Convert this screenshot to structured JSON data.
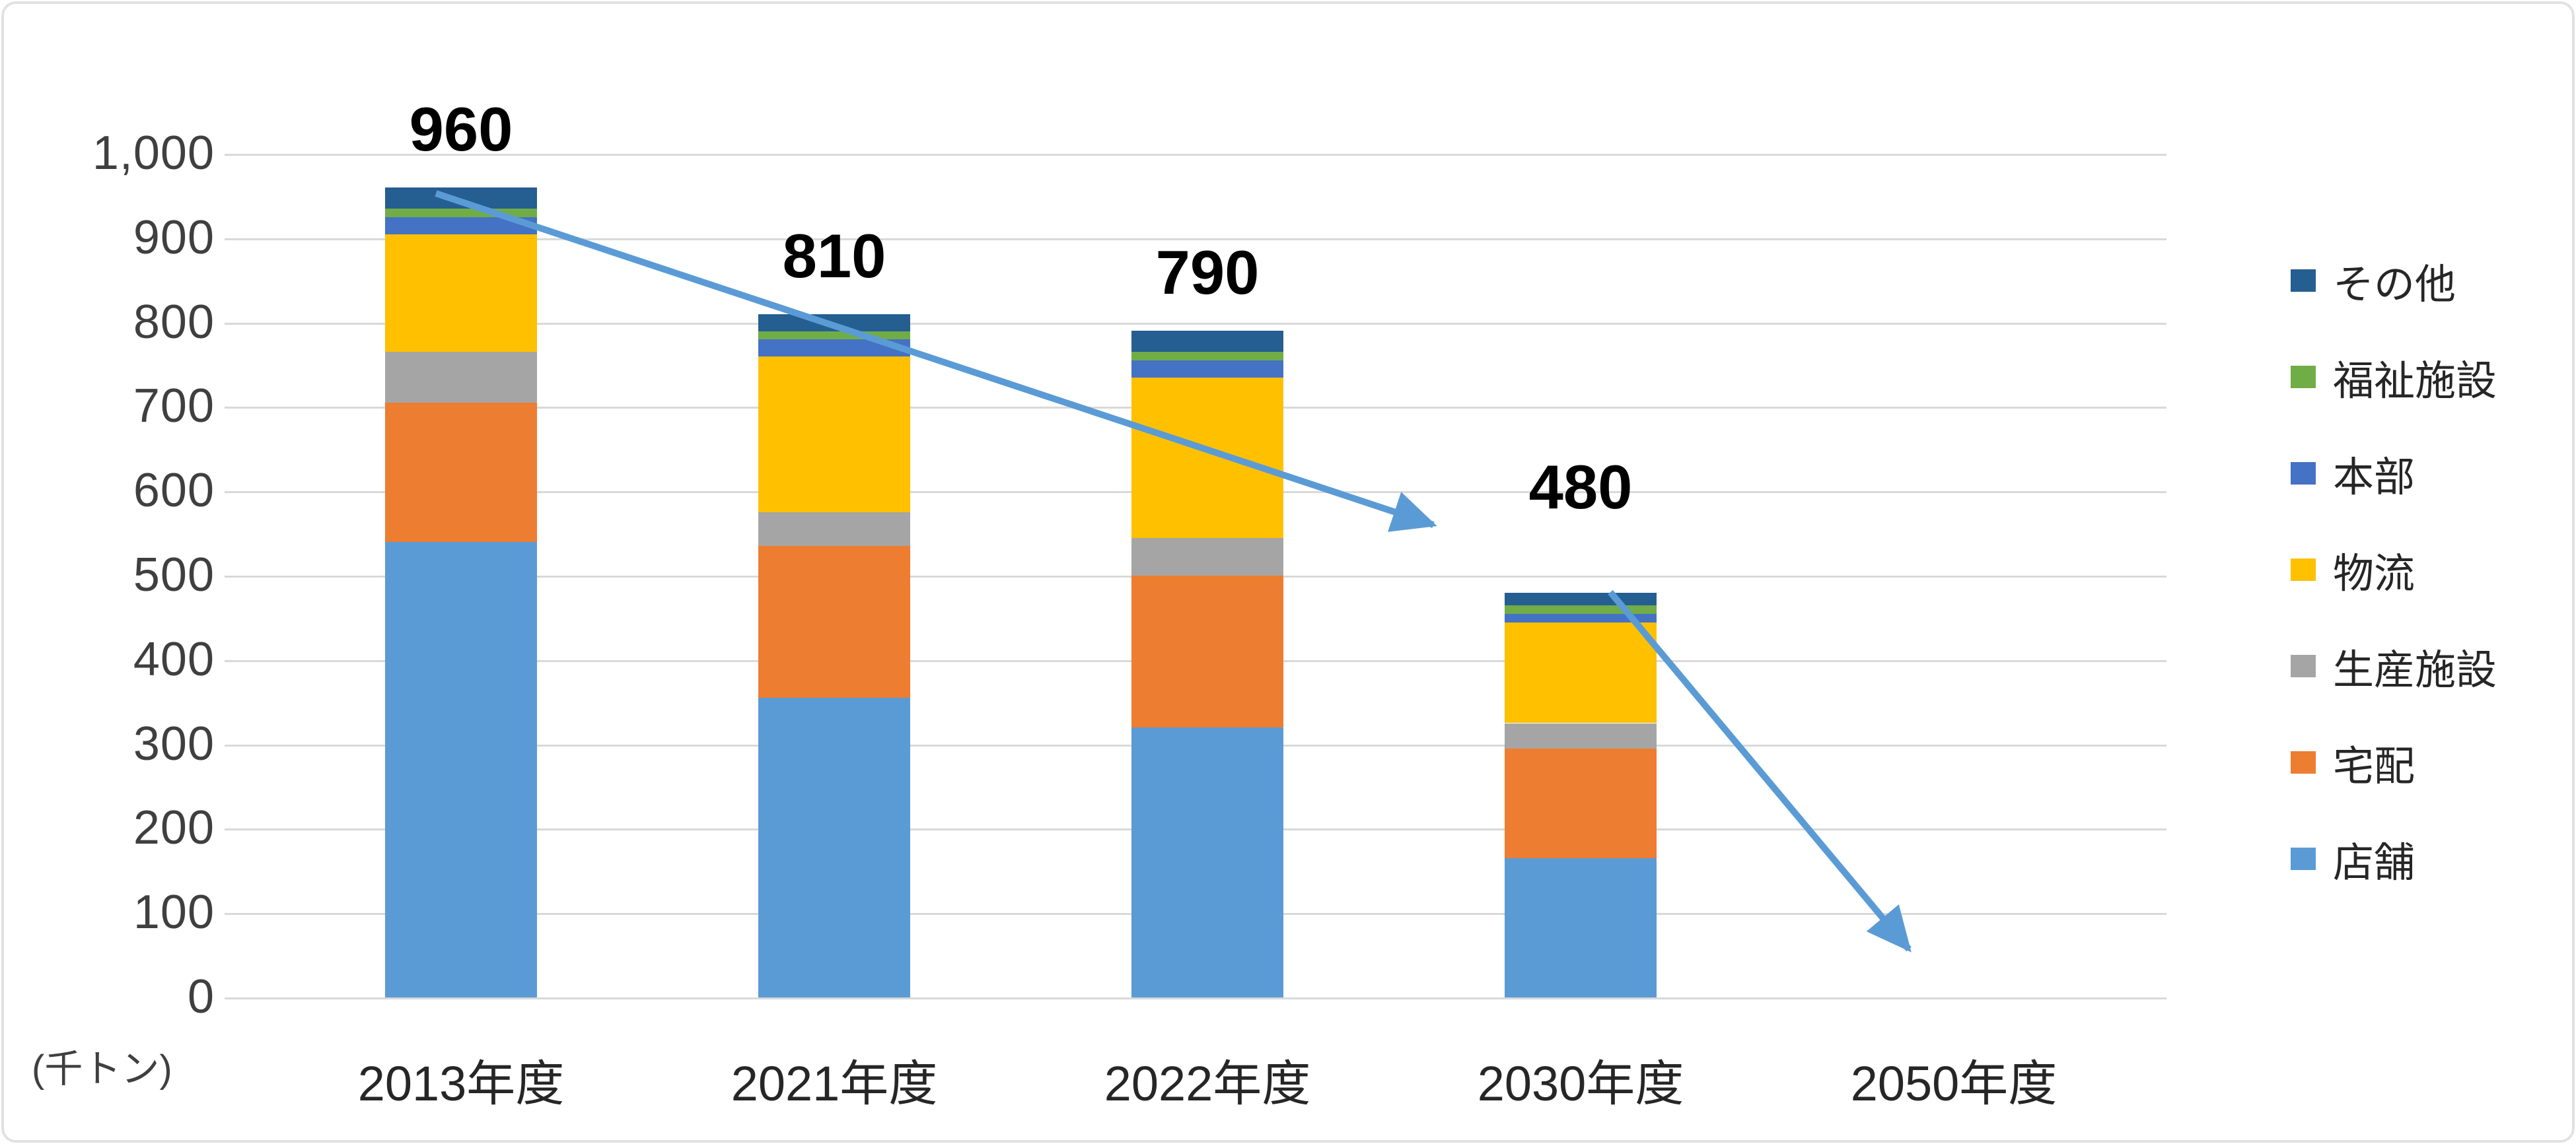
{
  "chart_data": {
    "type": "bar",
    "stacked": true,
    "unit_label": "(千トン)",
    "categories": [
      "2013年度",
      "2021年度",
      "2022年度",
      "2030年度",
      "2050年度"
    ],
    "series": [
      {
        "name": "店舗",
        "color": "#5B9BD5",
        "values": [
          540,
          355,
          320,
          165,
          0
        ]
      },
      {
        "name": "宅配",
        "color": "#ED7D31",
        "values": [
          165,
          180,
          180,
          130,
          0
        ]
      },
      {
        "name": "生産施設",
        "color": "#A5A5A5",
        "values": [
          60,
          40,
          45,
          30,
          0
        ]
      },
      {
        "name": "物流",
        "color": "#FFC000",
        "values": [
          140,
          185,
          190,
          120,
          0
        ]
      },
      {
        "name": "本部",
        "color": "#4472C4",
        "values": [
          20,
          20,
          20,
          10,
          0
        ]
      },
      {
        "name": "福祉施設",
        "color": "#70AD47",
        "values": [
          10,
          10,
          10,
          10,
          0
        ]
      },
      {
        "name": "その他",
        "color": "#255E91",
        "values": [
          25,
          20,
          25,
          15,
          0
        ]
      }
    ],
    "totals": [
      960,
      810,
      790,
      480,
      null
    ],
    "total_labels": [
      "960",
      "810",
      "790",
      "480",
      ""
    ],
    "ylim": [
      0,
      1000
    ],
    "ytick_step": 100,
    "ytick_labels": [
      "0",
      "100",
      "200",
      "300",
      "400",
      "500",
      "600",
      "700",
      "800",
      "900",
      "1,000"
    ],
    "grid": true,
    "legend_position": "right",
    "legend_top_to_bottom": [
      "その他",
      "福祉施設",
      "本部",
      "物流",
      "生産施設",
      "宅配",
      "店舗"
    ],
    "annotations": {
      "arrow_color": "#5B9BD5",
      "arrows": [
        {
          "description": "decline arrow from top of 2013年度 bar toward 2030年度",
          "from_value": 960,
          "to_value": 560
        },
        {
          "description": "decline arrow from top of 2030年度 bar toward zero at 2050年度",
          "from_value": 480,
          "to_value": 30
        }
      ]
    }
  }
}
